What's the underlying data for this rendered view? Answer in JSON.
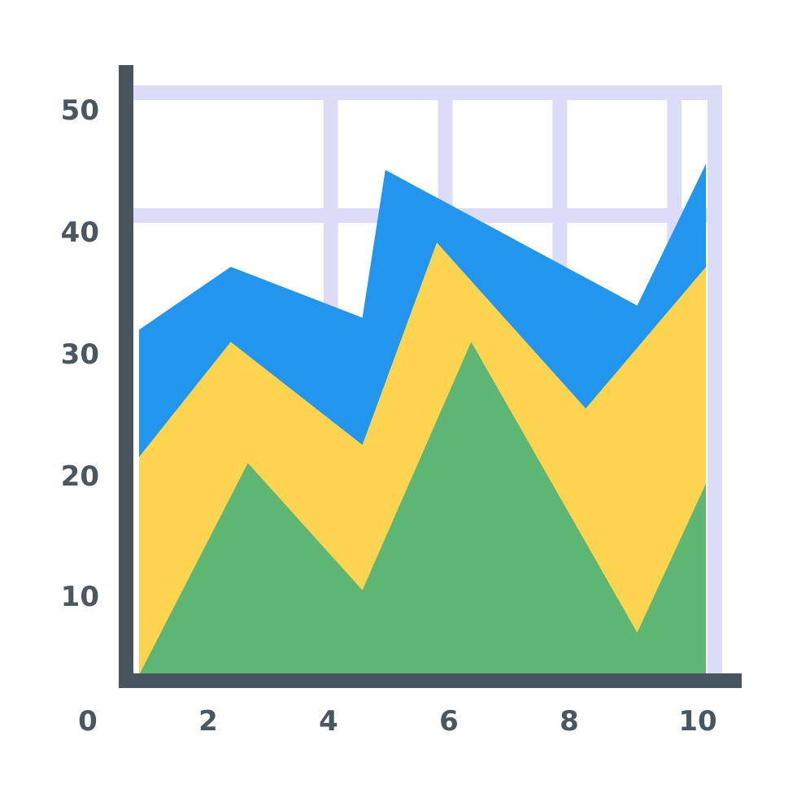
{
  "chart_data": {
    "type": "area",
    "stacked": true,
    "xlim": [
      0,
      10
    ],
    "ylim": [
      0,
      50
    ],
    "grid": true,
    "x_ticks": [
      0,
      2,
      4,
      6,
      8,
      10
    ],
    "y_ticks": [
      10,
      20,
      30,
      40,
      50
    ],
    "colors": {
      "axis": "#48545e",
      "grid": "#dcdcf8",
      "tick_label": "#4a5660"
    },
    "series": [
      {
        "color": "#5db673",
        "points": [
          [
            0.1,
            0
          ],
          [
            2,
            17.5
          ],
          [
            4,
            7
          ],
          [
            5.9,
            27.5
          ],
          [
            8.8,
            3.5
          ],
          [
            10,
            15.8
          ]
        ]
      },
      {
        "color": "#fdd44f",
        "points": [
          [
            0.1,
            18
          ],
          [
            1.7,
            27.5
          ],
          [
            4,
            19
          ],
          [
            5.3,
            35.7
          ],
          [
            7.9,
            22
          ],
          [
            10,
            33.7
          ]
        ]
      },
      {
        "color": "#2295ee",
        "points": [
          [
            0.1,
            28.5
          ],
          [
            1.7,
            33.7
          ],
          [
            4,
            29.5
          ],
          [
            4.4,
            41.7
          ],
          [
            8.8,
            30.5
          ],
          [
            10,
            42.2
          ]
        ]
      }
    ]
  }
}
